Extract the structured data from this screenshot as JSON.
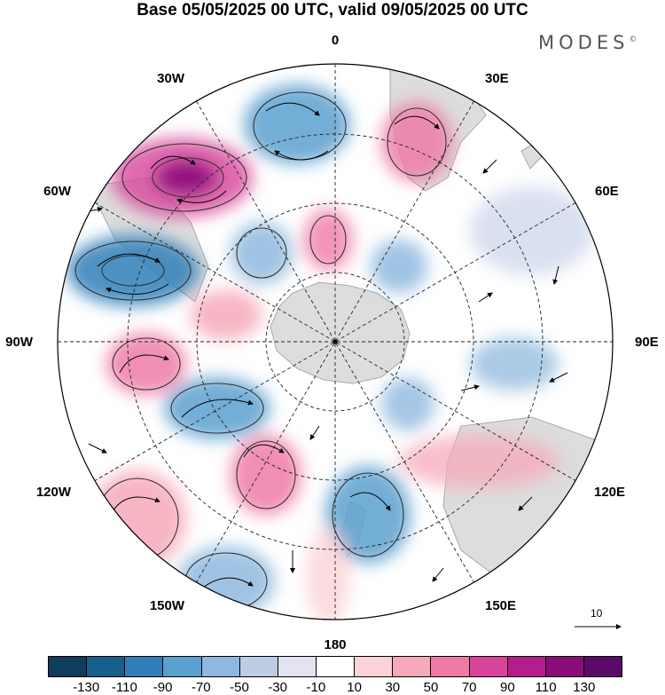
{
  "title": "Base 05/05/2025 00 UTC, valid 09/05/2025 00 UTC",
  "brand": "MODES",
  "brand_mark": "©",
  "longitude_labels": {
    "lon_0": "0",
    "lon_30e": "30E",
    "lon_60e": "60E",
    "lon_90e": "90E",
    "lon_120e": "120E",
    "lon_150e": "150E",
    "lon_180": "180",
    "lon_150w": "150W",
    "lon_120w": "120W",
    "lon_90w": "90W",
    "lon_60w": "60W",
    "lon_30w": "30W"
  },
  "reference_vector": "10",
  "colorbar": {
    "colors": [
      "#0f3d5c",
      "#175f8c",
      "#2e7fb8",
      "#5aa0cf",
      "#8fb8de",
      "#bfcce6",
      "#e3e3f1",
      "#ffffff",
      "#fbd3d6",
      "#f6a9b9",
      "#ef7aa6",
      "#d8449a",
      "#b51d8c",
      "#8b0c7b",
      "#5a0a67"
    ],
    "ticks": [
      "-130",
      "-110",
      "-90",
      "-70",
      "-50",
      "-30",
      "-10",
      "10",
      "30",
      "50",
      "70",
      "90",
      "110",
      "130"
    ]
  }
}
